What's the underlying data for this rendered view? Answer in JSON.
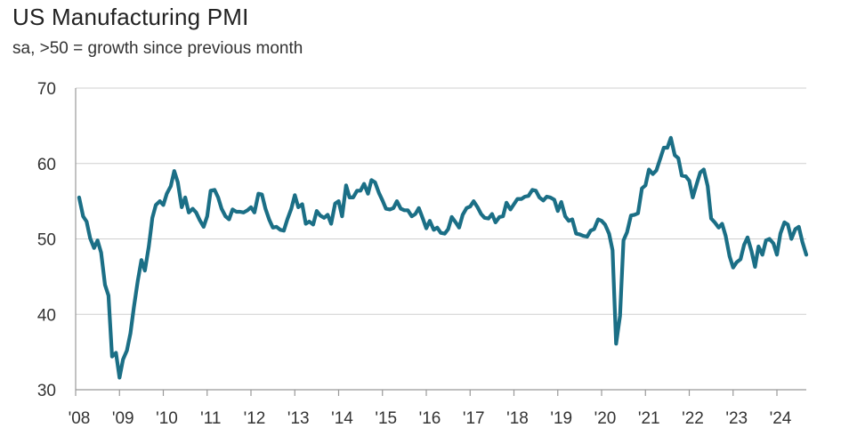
{
  "chart_data": {
    "type": "line",
    "title": "US Manufacturing PMI",
    "subtitle": "sa, >50 = growth since previous month",
    "xlabel": "",
    "ylabel": "",
    "ylim": [
      30,
      70
    ],
    "xlim": [
      2008.0,
      2024.67
    ],
    "yticks": [
      "30",
      "40",
      "50",
      "60",
      "70"
    ],
    "xticks": [
      "'08",
      "'09",
      "'10",
      "'11",
      "'12",
      "'13",
      "'14",
      "'15",
      "'16",
      "'17",
      "'18",
      "'19",
      "'20",
      "'21",
      "'22",
      "'23",
      "'24"
    ],
    "grid": "horizontal",
    "line_color": "#1b6f86",
    "series": [
      {
        "points": [
          [
            2008.08,
            55.5
          ],
          [
            2008.17,
            53.0
          ],
          [
            2008.25,
            52.3
          ],
          [
            2008.33,
            50.1
          ],
          [
            2008.42,
            48.8
          ],
          [
            2008.5,
            49.8
          ],
          [
            2008.58,
            48.2
          ],
          [
            2008.67,
            43.9
          ],
          [
            2008.75,
            42.5
          ],
          [
            2008.83,
            34.4
          ],
          [
            2008.92,
            34.9
          ],
          [
            2009.0,
            31.6
          ],
          [
            2009.08,
            34.0
          ],
          [
            2009.17,
            35.2
          ],
          [
            2009.25,
            37.5
          ],
          [
            2009.33,
            41.0
          ],
          [
            2009.42,
            44.5
          ],
          [
            2009.5,
            47.2
          ],
          [
            2009.58,
            45.8
          ],
          [
            2009.67,
            49.0
          ],
          [
            2009.75,
            52.8
          ],
          [
            2009.83,
            54.5
          ],
          [
            2009.92,
            55.0
          ],
          [
            2010.0,
            54.5
          ],
          [
            2010.08,
            56.0
          ],
          [
            2010.17,
            57.0
          ],
          [
            2010.25,
            59.0
          ],
          [
            2010.33,
            57.5
          ],
          [
            2010.42,
            54.2
          ],
          [
            2010.5,
            55.5
          ],
          [
            2010.58,
            53.5
          ],
          [
            2010.67,
            54.0
          ],
          [
            2010.75,
            53.5
          ],
          [
            2010.83,
            52.5
          ],
          [
            2010.92,
            51.6
          ],
          [
            2011.0,
            53.0
          ],
          [
            2011.08,
            56.4
          ],
          [
            2011.17,
            56.5
          ],
          [
            2011.25,
            55.5
          ],
          [
            2011.33,
            54.0
          ],
          [
            2011.42,
            53.0
          ],
          [
            2011.5,
            52.6
          ],
          [
            2011.58,
            53.9
          ],
          [
            2011.67,
            53.6
          ],
          [
            2011.75,
            53.6
          ],
          [
            2011.83,
            53.5
          ],
          [
            2011.92,
            53.8
          ],
          [
            2012.0,
            54.2
          ],
          [
            2012.08,
            53.5
          ],
          [
            2012.17,
            56.0
          ],
          [
            2012.25,
            55.9
          ],
          [
            2012.33,
            54.0
          ],
          [
            2012.42,
            52.5
          ],
          [
            2012.5,
            51.5
          ],
          [
            2012.58,
            51.6
          ],
          [
            2012.67,
            51.2
          ],
          [
            2012.75,
            51.1
          ],
          [
            2012.83,
            52.6
          ],
          [
            2012.92,
            54.0
          ],
          [
            2013.0,
            55.8
          ],
          [
            2013.08,
            54.2
          ],
          [
            2013.17,
            54.6
          ],
          [
            2013.25,
            52.0
          ],
          [
            2013.33,
            52.3
          ],
          [
            2013.42,
            51.9
          ],
          [
            2013.5,
            53.7
          ],
          [
            2013.58,
            53.1
          ],
          [
            2013.67,
            52.8
          ],
          [
            2013.75,
            53.2
          ],
          [
            2013.83,
            52.0
          ],
          [
            2013.92,
            54.7
          ],
          [
            2014.0,
            55.0
          ],
          [
            2014.08,
            53.0
          ],
          [
            2014.17,
            57.1
          ],
          [
            2014.25,
            55.5
          ],
          [
            2014.33,
            55.5
          ],
          [
            2014.42,
            56.4
          ],
          [
            2014.5,
            56.4
          ],
          [
            2014.58,
            57.3
          ],
          [
            2014.67,
            56.0
          ],
          [
            2014.75,
            57.8
          ],
          [
            2014.83,
            57.5
          ],
          [
            2014.92,
            56.1
          ],
          [
            2015.0,
            55.1
          ],
          [
            2015.08,
            54.0
          ],
          [
            2015.17,
            53.9
          ],
          [
            2015.25,
            54.1
          ],
          [
            2015.33,
            55.0
          ],
          [
            2015.42,
            54.0
          ],
          [
            2015.5,
            53.8
          ],
          [
            2015.58,
            53.8
          ],
          [
            2015.67,
            53.0
          ],
          [
            2015.75,
            53.3
          ],
          [
            2015.83,
            54.1
          ],
          [
            2015.92,
            52.7
          ],
          [
            2016.0,
            51.4
          ],
          [
            2016.08,
            52.4
          ],
          [
            2016.17,
            51.2
          ],
          [
            2016.25,
            51.5
          ],
          [
            2016.33,
            50.8
          ],
          [
            2016.42,
            50.7
          ],
          [
            2016.5,
            51.3
          ],
          [
            2016.58,
            52.9
          ],
          [
            2016.67,
            52.2
          ],
          [
            2016.75,
            51.5
          ],
          [
            2016.83,
            53.2
          ],
          [
            2016.92,
            54.1
          ],
          [
            2017.0,
            54.3
          ],
          [
            2017.08,
            55.0
          ],
          [
            2017.17,
            54.2
          ],
          [
            2017.25,
            53.3
          ],
          [
            2017.33,
            52.8
          ],
          [
            2017.42,
            52.7
          ],
          [
            2017.5,
            53.3
          ],
          [
            2017.58,
            52.2
          ],
          [
            2017.67,
            52.9
          ],
          [
            2017.75,
            53.0
          ],
          [
            2017.83,
            54.8
          ],
          [
            2017.92,
            53.9
          ],
          [
            2018.0,
            54.6
          ],
          [
            2018.08,
            55.3
          ],
          [
            2018.17,
            55.3
          ],
          [
            2018.25,
            55.6
          ],
          [
            2018.33,
            55.7
          ],
          [
            2018.42,
            56.5
          ],
          [
            2018.5,
            56.4
          ],
          [
            2018.58,
            55.5
          ],
          [
            2018.67,
            55.1
          ],
          [
            2018.75,
            55.6
          ],
          [
            2018.83,
            55.5
          ],
          [
            2018.92,
            55.2
          ],
          [
            2019.0,
            53.7
          ],
          [
            2019.08,
            54.9
          ],
          [
            2019.17,
            53.0
          ],
          [
            2019.25,
            52.4
          ],
          [
            2019.33,
            52.6
          ],
          [
            2019.42,
            50.7
          ],
          [
            2019.5,
            50.6
          ],
          [
            2019.58,
            50.4
          ],
          [
            2019.67,
            50.3
          ],
          [
            2019.75,
            51.1
          ],
          [
            2019.83,
            51.3
          ],
          [
            2019.92,
            52.6
          ],
          [
            2020.0,
            52.4
          ],
          [
            2020.08,
            51.9
          ],
          [
            2020.17,
            50.7
          ],
          [
            2020.25,
            48.5
          ],
          [
            2020.33,
            36.1
          ],
          [
            2020.42,
            39.8
          ],
          [
            2020.5,
            49.8
          ],
          [
            2020.58,
            50.9
          ],
          [
            2020.67,
            53.1
          ],
          [
            2020.75,
            53.2
          ],
          [
            2020.83,
            53.4
          ],
          [
            2020.92,
            56.7
          ],
          [
            2021.0,
            57.1
          ],
          [
            2021.08,
            59.2
          ],
          [
            2021.17,
            58.6
          ],
          [
            2021.25,
            59.1
          ],
          [
            2021.33,
            60.5
          ],
          [
            2021.42,
            62.1
          ],
          [
            2021.5,
            62.1
          ],
          [
            2021.58,
            63.4
          ],
          [
            2021.67,
            61.1
          ],
          [
            2021.75,
            60.7
          ],
          [
            2021.83,
            58.4
          ],
          [
            2021.92,
            58.3
          ],
          [
            2022.0,
            57.7
          ],
          [
            2022.08,
            55.5
          ],
          [
            2022.17,
            57.3
          ],
          [
            2022.25,
            58.8
          ],
          [
            2022.33,
            59.2
          ],
          [
            2022.42,
            57.0
          ],
          [
            2022.5,
            52.7
          ],
          [
            2022.58,
            52.2
          ],
          [
            2022.67,
            51.5
          ],
          [
            2022.75,
            52.0
          ],
          [
            2022.83,
            50.4
          ],
          [
            2022.92,
            47.7
          ],
          [
            2023.0,
            46.2
          ],
          [
            2023.08,
            46.9
          ],
          [
            2023.17,
            47.3
          ],
          [
            2023.25,
            49.2
          ],
          [
            2023.33,
            50.2
          ],
          [
            2023.42,
            48.4
          ],
          [
            2023.5,
            46.3
          ],
          [
            2023.58,
            49.0
          ],
          [
            2023.67,
            47.9
          ],
          [
            2023.75,
            49.8
          ],
          [
            2023.83,
            50.0
          ],
          [
            2023.92,
            49.4
          ],
          [
            2024.0,
            47.9
          ],
          [
            2024.08,
            50.7
          ],
          [
            2024.17,
            52.2
          ],
          [
            2024.25,
            51.9
          ],
          [
            2024.33,
            50.0
          ],
          [
            2024.42,
            51.3
          ],
          [
            2024.5,
            51.6
          ],
          [
            2024.58,
            49.6
          ],
          [
            2024.67,
            47.9
          ]
        ]
      }
    ]
  }
}
